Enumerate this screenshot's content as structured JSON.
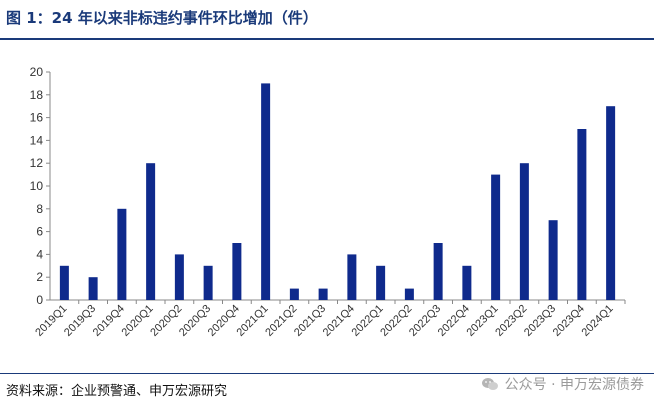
{
  "header": {
    "title": "图 1：24 年以来非标违约事件环比增加（件）"
  },
  "footer": {
    "source": "资料来源：企业预警通、申万宏源研究",
    "watermark": "公众号 · 申万宏源债券"
  },
  "colors": {
    "bar": "#0f2a8c",
    "rule": "#1a3a7a",
    "axis": "#888888"
  },
  "chart_data": {
    "type": "bar",
    "categories": [
      "2019Q1",
      "2019Q3",
      "2019Q4",
      "2020Q1",
      "2020Q2",
      "2020Q3",
      "2020Q4",
      "2021Q1",
      "2021Q2",
      "2021Q3",
      "2021Q4",
      "2022Q1",
      "2022Q2",
      "2022Q3",
      "2022Q4",
      "2023Q1",
      "2023Q2",
      "2023Q3",
      "2023Q4",
      "2024Q1"
    ],
    "values": [
      3,
      2,
      8,
      12,
      4,
      3,
      5,
      19,
      1,
      1,
      4,
      3,
      1,
      5,
      3,
      11,
      12,
      7,
      15,
      17
    ],
    "yticks": [
      0,
      2,
      4,
      6,
      8,
      10,
      12,
      14,
      16,
      18,
      20
    ],
    "ylim": [
      0,
      20
    ],
    "grid": false,
    "legend": "none"
  }
}
